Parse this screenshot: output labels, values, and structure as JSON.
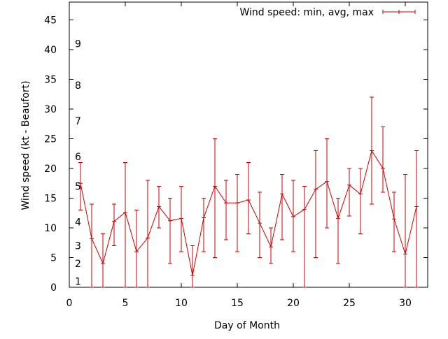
{
  "chart_data": {
    "type": "line",
    "xlabel": "Day of Month",
    "ylabel": "Wind speed (kt - Beaufort)",
    "xlim": [
      0,
      32
    ],
    "ylim": [
      0,
      48
    ],
    "xticks": [
      0,
      5,
      10,
      15,
      20,
      25,
      30
    ],
    "yticks": [
      0,
      5,
      10,
      15,
      20,
      25,
      30,
      35,
      40,
      45
    ],
    "grid": false,
    "legend_position": "top-right",
    "series": [
      {
        "name": "Wind speed: min, avg, max",
        "color": "#cc0000",
        "x": [
          1,
          2,
          3,
          4,
          5,
          6,
          7,
          8,
          9,
          10,
          11,
          12,
          13,
          14,
          15,
          16,
          17,
          18,
          19,
          20,
          21,
          22,
          23,
          24,
          25,
          26,
          27,
          28,
          29,
          30,
          31
        ],
        "avg": [
          17.5,
          8.2,
          4,
          11.1,
          12.6,
          6,
          8.3,
          13.6,
          11.2,
          11.6,
          2,
          11.7,
          17,
          14.2,
          14.2,
          14.7,
          10.8,
          6.8,
          15.7,
          11.9,
          13.1,
          16.5,
          17.8,
          11.6,
          17.2,
          15.7,
          23,
          20,
          11.5,
          5.6,
          13.6
        ],
        "min": [
          13,
          0,
          0,
          7,
          0,
          0,
          0,
          10,
          4,
          6,
          0,
          6,
          5,
          8,
          6,
          9,
          5,
          4,
          8,
          6,
          0,
          5,
          10,
          4,
          12,
          9,
          14,
          16,
          6,
          0,
          0
        ],
        "max": [
          21,
          14,
          9,
          14,
          21,
          13,
          18,
          17,
          15,
          17,
          7,
          15,
          25,
          18,
          19,
          21,
          16,
          10,
          19,
          18,
          17,
          23,
          25,
          15,
          20,
          20,
          32,
          27,
          16,
          19,
          23
        ]
      }
    ],
    "beaufort_labels": [
      {
        "label": "1",
        "y": 1
      },
      {
        "label": "2",
        "y": 4
      },
      {
        "label": "3",
        "y": 7
      },
      {
        "label": "4",
        "y": 11
      },
      {
        "label": "5",
        "y": 17
      },
      {
        "label": "6",
        "y": 22
      },
      {
        "label": "7",
        "y": 28
      },
      {
        "label": "8",
        "y": 34
      },
      {
        "label": "9",
        "y": 41
      }
    ]
  }
}
